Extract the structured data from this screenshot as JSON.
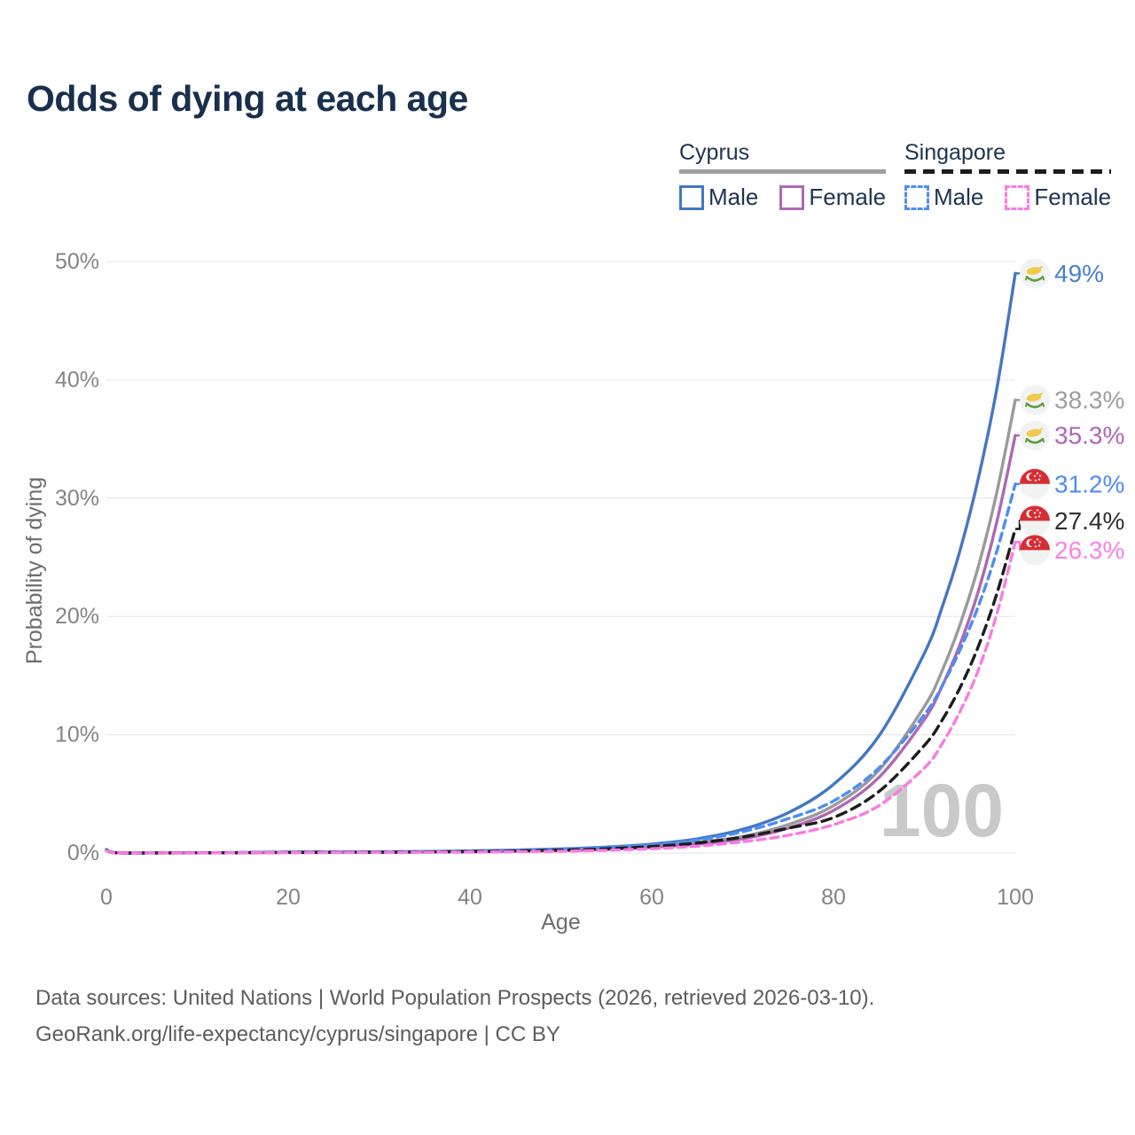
{
  "title": "Odds of dying at each age",
  "legend": {
    "groups": [
      {
        "label": "Cyprus",
        "line_style": "solid",
        "underline_color": "#9e9e9e",
        "items": [
          {
            "label": "Male",
            "color": "#4377c2",
            "dashed": false
          },
          {
            "label": "Female",
            "color": "#af68b4",
            "dashed": false
          }
        ]
      },
      {
        "label": "Singapore",
        "line_style": "dashed",
        "underline_color": "#1c1c1c",
        "items": [
          {
            "label": "Male",
            "color": "#4c8df5",
            "dashed": true
          },
          {
            "label": "Female",
            "color": "#fb7ae3",
            "dashed": true
          }
        ]
      }
    ]
  },
  "chart_data": {
    "type": "line",
    "title": "Odds of dying at each age",
    "xlabel": "Age",
    "ylabel": "Probability of dying",
    "xlim": [
      0,
      100
    ],
    "ylim": [
      0,
      50
    ],
    "x_ticks": [
      0,
      20,
      40,
      60,
      80,
      100
    ],
    "y_ticks": [
      {
        "v": 0,
        "label": "0%"
      },
      {
        "v": 10,
        "label": "10%"
      },
      {
        "v": 20,
        "label": "20%"
      },
      {
        "v": 30,
        "label": "30%"
      },
      {
        "v": 40,
        "label": "40%"
      },
      {
        "v": 50,
        "label": "50%"
      }
    ],
    "grid": "horizontal",
    "grid_color": "#ececec",
    "age_indicator": "100",
    "age_indicator_color": "#c9c9c9",
    "x": [
      0,
      1,
      5,
      10,
      15,
      20,
      25,
      30,
      35,
      40,
      45,
      50,
      55,
      60,
      65,
      70,
      75,
      80,
      85,
      90,
      92,
      94,
      96,
      98,
      100
    ],
    "series": [
      {
        "name": "Cyprus Male",
        "country": "Cyprus",
        "sex": "Male",
        "color": "#4377c2",
        "dash": null,
        "flag": "cyprus",
        "end_label": "49%",
        "label_color": "#4a7fd0",
        "values": [
          0.3,
          0.03,
          0.02,
          0.02,
          0.04,
          0.08,
          0.09,
          0.1,
          0.13,
          0.18,
          0.25,
          0.35,
          0.5,
          0.75,
          1.2,
          2.0,
          3.4,
          5.8,
          9.9,
          16.9,
          20.9,
          25.8,
          31.9,
          39.4,
          49.0
        ]
      },
      {
        "name": "Cyprus (both sexes)",
        "country": "Cyprus",
        "sex": "Both",
        "color": "#9a9a9a",
        "dash": null,
        "flag": "cyprus",
        "end_label": "38.3%",
        "label_color": "#9e9e9e",
        "values": [
          0.25,
          0.02,
          0.015,
          0.015,
          0.03,
          0.06,
          0.07,
          0.08,
          0.1,
          0.13,
          0.18,
          0.26,
          0.4,
          0.6,
          0.9,
          1.4,
          2.4,
          4.0,
          7.0,
          12.4,
          15.5,
          19.5,
          24.4,
          30.6,
          38.3
        ]
      },
      {
        "name": "Cyprus Female",
        "country": "Cyprus",
        "sex": "Female",
        "color": "#af68b4",
        "dash": null,
        "flag": "cyprus",
        "end_label": "35.3%",
        "label_color": "#b164b8",
        "values": [
          0.22,
          0.02,
          0.01,
          0.01,
          0.02,
          0.04,
          0.05,
          0.06,
          0.08,
          0.1,
          0.14,
          0.2,
          0.3,
          0.48,
          0.75,
          1.2,
          2.1,
          3.6,
          6.4,
          11.3,
          14.2,
          17.8,
          22.3,
          28.1,
          35.3
        ]
      },
      {
        "name": "Singapore Male",
        "country": "Singapore",
        "sex": "Male",
        "color": "#4c8df5",
        "dash": "9 6",
        "flag": "singapore",
        "end_label": "31.2%",
        "label_color": "#4c8df5",
        "values": [
          0.25,
          0.02,
          0.015,
          0.02,
          0.04,
          0.07,
          0.08,
          0.09,
          0.12,
          0.16,
          0.22,
          0.32,
          0.48,
          0.7,
          1.1,
          1.8,
          2.9,
          4.4,
          7.2,
          11.7,
          14.2,
          17.3,
          21.0,
          25.6,
          31.2
        ]
      },
      {
        "name": "Singapore (both sexes)",
        "country": "Singapore",
        "sex": "Both",
        "color": "#1c1c1c",
        "dash": "11 7",
        "flag": "singapore",
        "end_label": "27.4%",
        "label_color": "#2f2f2f",
        "values": [
          0.22,
          0.015,
          0.01,
          0.015,
          0.03,
          0.05,
          0.06,
          0.07,
          0.09,
          0.12,
          0.17,
          0.24,
          0.36,
          0.55,
          0.85,
          1.35,
          2.1,
          3.0,
          5.2,
          9.1,
          11.3,
          14.1,
          17.6,
          22.0,
          27.4
        ]
      },
      {
        "name": "Singapore Female",
        "country": "Singapore",
        "sex": "Female",
        "color": "#fb7ae3",
        "dash": "9 6",
        "flag": "singapore",
        "end_label": "26.3%",
        "label_color": "#fb80e8",
        "values": [
          0.2,
          0.01,
          0.01,
          0.01,
          0.02,
          0.03,
          0.04,
          0.05,
          0.06,
          0.08,
          0.11,
          0.15,
          0.23,
          0.36,
          0.58,
          0.95,
          1.5,
          2.4,
          4.0,
          7.2,
          9.3,
          12.1,
          15.6,
          20.3,
          26.3
        ]
      }
    ]
  },
  "footer": {
    "line1": "Data sources: United Nations | World Population Prospects (2026, retrieved 2026-03-10).",
    "line2": "GeoRank.org/life-expectancy/cyprus/singapore | CC BY"
  }
}
